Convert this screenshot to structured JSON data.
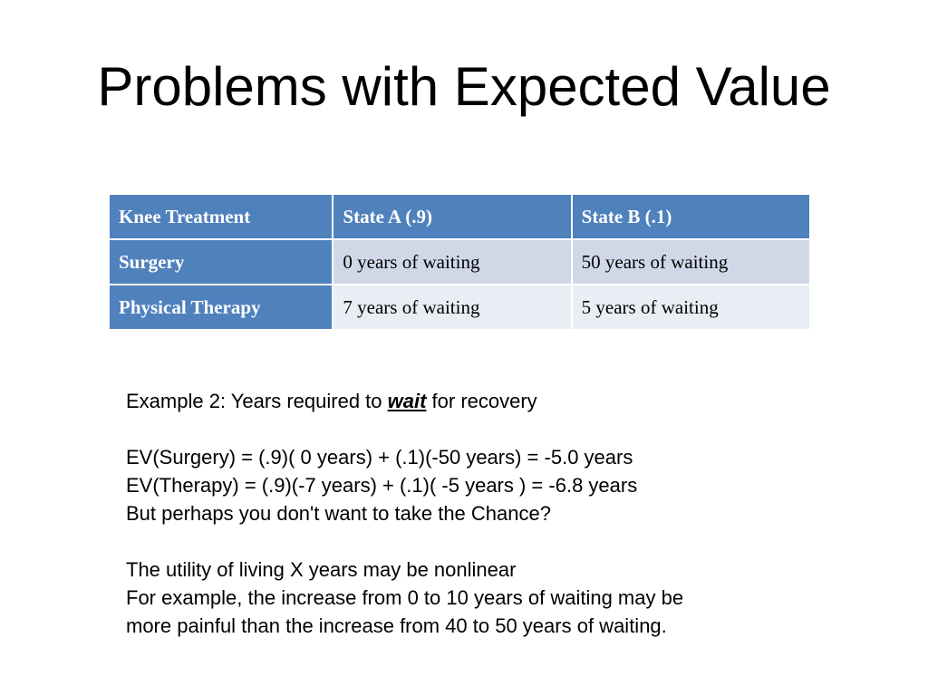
{
  "slide": {
    "title": "Problems with Expected Value"
  },
  "table": {
    "header": [
      "Knee Treatment",
      "State A (.9)",
      "State B (.1)"
    ],
    "rows": [
      {
        "label": "Surgery",
        "state_a": "0 years of waiting",
        "state_b": "50 years of waiting"
      },
      {
        "label": "Physical Therapy",
        "state_a": "7 years of waiting",
        "state_b": "5 years of waiting"
      }
    ],
    "colors": {
      "header_bg": "#4f81bd",
      "band1_bg": "#d0d8e8",
      "band2_bg": "#e9edf4",
      "header_text": "#ffffff"
    }
  },
  "body": {
    "example_prefix": "Example 2: Years required to ",
    "example_emphasis": "wait",
    "example_suffix": " for recovery",
    "ev_surgery": "EV(Surgery) = (.9)( 0 years) + (.1)(-50 years) = -5.0 years",
    "ev_therapy": "EV(Therapy) = (.9)(-7 years) + (.1)( -5 years ) = -6.8 years",
    "chance": "But perhaps you don't want to take the Chance?",
    "utility": "The utility of living X years may be nonlinear",
    "example_line1": "For example, the increase from 0 to 10 years of waiting may be",
    "example_line2": "more painful than the increase from 40 to 50 years of waiting."
  }
}
